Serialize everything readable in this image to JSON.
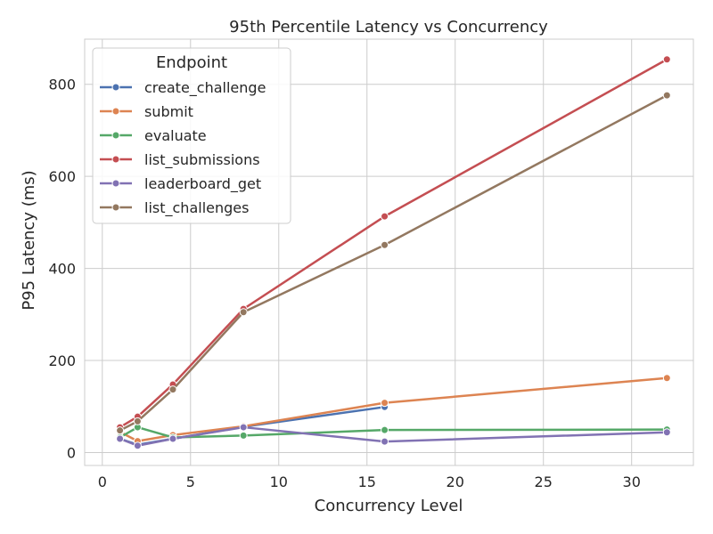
{
  "chart_data": {
    "type": "line",
    "title": "95th Percentile Latency vs Concurrency",
    "xlabel": "Concurrency Level",
    "ylabel": "P95 Latency (ms)",
    "xlim": [
      -1,
      33.5
    ],
    "ylim": [
      -28,
      898
    ],
    "xticks": [
      0,
      5,
      10,
      15,
      20,
      25,
      30
    ],
    "yticks": [
      0,
      200,
      400,
      600,
      800
    ],
    "grid": true,
    "legend": {
      "title": "Endpoint",
      "position": "upper-left"
    },
    "series": [
      {
        "name": "create_challenge",
        "color": "#4c72b0",
        "x": [
          1,
          2,
          4,
          8,
          16
        ],
        "y": [
          30,
          17,
          30,
          56,
          99
        ]
      },
      {
        "name": "submit",
        "color": "#dd8452",
        "x": [
          1,
          2,
          4,
          8,
          16,
          32
        ],
        "y": [
          45,
          25,
          38,
          57,
          108,
          162
        ]
      },
      {
        "name": "evaluate",
        "color": "#55a868",
        "x": [
          1,
          2,
          4,
          8,
          16,
          32
        ],
        "y": [
          33,
          55,
          33,
          37,
          49,
          50
        ]
      },
      {
        "name": "list_submissions",
        "color": "#c44e52",
        "x": [
          1,
          2,
          4,
          8,
          16,
          32
        ],
        "y": [
          55,
          78,
          148,
          312,
          513,
          854
        ]
      },
      {
        "name": "leaderboard_get",
        "color": "#8172b3",
        "x": [
          1,
          2,
          4,
          8,
          16,
          32
        ],
        "y": [
          30,
          15,
          30,
          55,
          24,
          44
        ]
      },
      {
        "name": "list_challenges",
        "color": "#937860",
        "x": [
          1,
          2,
          4,
          8,
          16,
          32
        ],
        "y": [
          48,
          68,
          137,
          305,
          451,
          776
        ]
      }
    ]
  }
}
